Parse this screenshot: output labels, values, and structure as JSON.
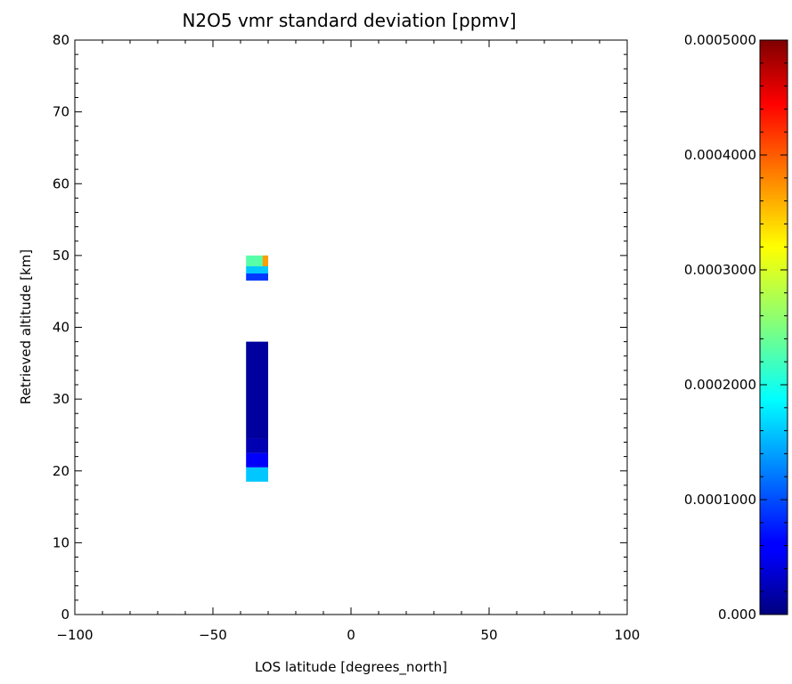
{
  "chart_data": {
    "type": "heatmap",
    "title": "N2O5 vmr standard deviation [ppmv]",
    "xlabel": "LOS latitude [degrees_north]",
    "ylabel": "Retrieved altitude [km]",
    "xlim": [
      -100,
      100
    ],
    "ylim": [
      0,
      80
    ],
    "xticks": [
      -100,
      -50,
      0,
      50,
      100
    ],
    "xtick_labels": [
      "−100",
      "−50",
      "0",
      "50",
      "100"
    ],
    "yticks": [
      0,
      10,
      20,
      30,
      40,
      50,
      60,
      70,
      80
    ],
    "ytick_labels": [
      "0",
      "10",
      "20",
      "30",
      "40",
      "50",
      "60",
      "70",
      "80"
    ],
    "grid": false,
    "colorbar": {
      "min": 0,
      "max": 0.0005,
      "colormap": "jet",
      "ticks": [
        0,
        0.0001,
        0.0002,
        0.0003,
        0.0004,
        0.0005
      ],
      "tick_labels": [
        "0.000",
        "0.0001000",
        "0.0002000",
        "0.0003000",
        "0.0004000",
        "0.0005000"
      ]
    },
    "cells": [
      {
        "lat_min": -38,
        "lat_max": -30,
        "alt_min": 18.5,
        "alt_max": 20.5,
        "value": 0.00016
      },
      {
        "lat_min": -38,
        "lat_max": -30,
        "alt_min": 20.5,
        "alt_max": 22.5,
        "value": 6e-05
      },
      {
        "lat_min": -38,
        "lat_max": -30,
        "alt_min": 22.5,
        "alt_max": 24.5,
        "value": 2.5e-05
      },
      {
        "lat_min": -38,
        "lat_max": -30,
        "alt_min": 24.5,
        "alt_max": 38,
        "value": 1.5e-05
      },
      {
        "lat_min": -38,
        "lat_max": -30,
        "alt_min": 46.5,
        "alt_max": 47.5,
        "value": 9e-05
      },
      {
        "lat_min": -38,
        "lat_max": -30,
        "alt_min": 47.5,
        "alt_max": 48.5,
        "value": 0.00016
      },
      {
        "lat_min": -38,
        "lat_max": -30,
        "alt_min": 48.5,
        "alt_max": 50,
        "value": 0.00023
      },
      {
        "lat_min": -32,
        "lat_max": -30,
        "alt_min": 48.5,
        "alt_max": 50,
        "value": 0.00036
      }
    ]
  }
}
